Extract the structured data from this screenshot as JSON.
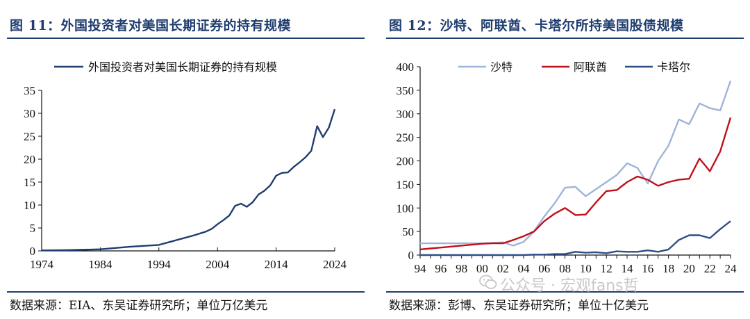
{
  "left_panel": {
    "title": "图 11：外国投资者对美国长期证券的持有规模",
    "source": "数据来源：EIA、东吴证券研究所；单位万亿美元"
  },
  "right_panel": {
    "title": "图 12：沙特、阿联酋、卡塔尔所持美国股债规模",
    "source": "数据来源：彭博、东吴证券研究所；单位十亿美元"
  },
  "watermark": "公众号 · 宏观fans哲",
  "colors": {
    "title": "#1f3d70",
    "navy": "#1f3d70",
    "saudi": "#9fb4d8",
    "uae": "#c0101a",
    "qatar": "#2b4f86"
  },
  "chart_data": [
    {
      "type": "line",
      "title": "",
      "legend_position": "top",
      "xlim": [
        1974,
        2024
      ],
      "ylim": [
        0,
        35
      ],
      "x_ticks": [
        1974,
        1984,
        1994,
        2004,
        2014,
        2024
      ],
      "y_ticks": [
        0,
        5,
        10,
        15,
        20,
        25,
        30,
        35
      ],
      "grid": false,
      "series": [
        {
          "name": "外国投资者对美国长期证券的持有规模",
          "color": "#1f3d70",
          "x": [
            1974,
            1978,
            1984,
            1989,
            1994,
            1996,
            1998,
            2000,
            2002,
            2003,
            2004,
            2005,
            2006,
            2007,
            2008,
            2009,
            2010,
            2011,
            2012,
            2013,
            2014,
            2015,
            2016,
            2017,
            2018,
            2019,
            2020,
            2021,
            2022,
            2023,
            2024
          ],
          "y": [
            0.1,
            0.15,
            0.35,
            0.9,
            1.3,
            2.0,
            2.7,
            3.4,
            4.2,
            4.8,
            5.8,
            6.7,
            7.7,
            9.8,
            10.3,
            9.6,
            10.6,
            12.3,
            13.1,
            14.3,
            16.4,
            17.0,
            17.1,
            18.3,
            19.3,
            20.4,
            21.8,
            27.2,
            24.8,
            26.9,
            30.9
          ]
        }
      ]
    },
    {
      "type": "line",
      "title": "",
      "legend_position": "top",
      "xlim": [
        1994,
        2024
      ],
      "ylim": [
        0,
        400
      ],
      "x_ticks": [
        "94",
        "96",
        "98",
        "00",
        "02",
        "04",
        "06",
        "08",
        "10",
        "12",
        "14",
        "16",
        "18",
        "20",
        "22",
        "24"
      ],
      "y_ticks": [
        0,
        50,
        100,
        150,
        200,
        250,
        300,
        350,
        400
      ],
      "grid": false,
      "series": [
        {
          "name": "沙特",
          "color": "#9fb4d8",
          "x": [
            1994,
            1995,
            1996,
            1997,
            1998,
            1999,
            2000,
            2001,
            2002,
            2003,
            2004,
            2005,
            2006,
            2007,
            2008,
            2009,
            2010,
            2011,
            2012,
            2013,
            2014,
            2015,
            2016,
            2017,
            2018,
            2019,
            2020,
            2021,
            2022,
            2023,
            2024
          ],
          "y": [
            25,
            25,
            25,
            25,
            25,
            25,
            25,
            26,
            27,
            20,
            28,
            50,
            82,
            110,
            143,
            145,
            125,
            140,
            155,
            170,
            195,
            185,
            152,
            200,
            232,
            288,
            278,
            322,
            312,
            307,
            370
          ]
        },
        {
          "name": "阿联酋",
          "color": "#c0101a",
          "x": [
            1994,
            1995,
            1996,
            1997,
            1998,
            1999,
            2000,
            2001,
            2002,
            2003,
            2004,
            2005,
            2006,
            2007,
            2008,
            2009,
            2010,
            2011,
            2012,
            2013,
            2014,
            2015,
            2016,
            2017,
            2018,
            2019,
            2020,
            2021,
            2022,
            2023,
            2024
          ],
          "y": [
            12,
            14,
            16,
            18,
            20,
            22,
            24,
            25,
            25,
            32,
            40,
            50,
            72,
            88,
            100,
            85,
            86,
            112,
            136,
            138,
            155,
            167,
            160,
            147,
            155,
            160,
            162,
            205,
            178,
            220,
            292
          ]
        },
        {
          "name": "卡塔尔",
          "color": "#2b4f86",
          "x": [
            1994,
            1995,
            1996,
            1997,
            1998,
            1999,
            2000,
            2001,
            2002,
            2003,
            2004,
            2005,
            2006,
            2007,
            2008,
            2009,
            2010,
            2011,
            2012,
            2013,
            2014,
            2015,
            2016,
            2017,
            2018,
            2019,
            2020,
            2021,
            2022,
            2023,
            2024
          ],
          "y": [
            0,
            0,
            0,
            0,
            0,
            0,
            0,
            0,
            0,
            0,
            0,
            1,
            1,
            2,
            2,
            7,
            5,
            6,
            4,
            8,
            7,
            7,
            10,
            7,
            12,
            32,
            42,
            42,
            36,
            55,
            72
          ]
        }
      ]
    }
  ]
}
